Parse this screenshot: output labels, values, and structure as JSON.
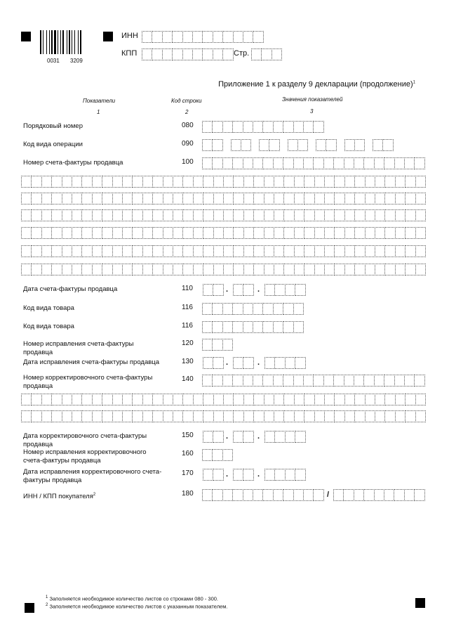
{
  "header": {
    "barcode_number_left": "0031",
    "barcode_number_right": "3209",
    "inn_label": "ИНН",
    "kpp_label": "КПП",
    "page_label": "Стр."
  },
  "title": "Приложение 1 к разделу 9 декларации (продолжение)",
  "title_footnote": "1",
  "columns": {
    "col1": "Показатели",
    "col1_num": "1",
    "col2": "Код строки",
    "col2_num": "2",
    "col3": "Значения показателей",
    "col3_num": "3"
  },
  "rows": [
    {
      "label": "Порядковый номер",
      "code": "080"
    },
    {
      "label": "Код вида операции",
      "code": "090"
    },
    {
      "label": "Номер счета-фактуры продавца",
      "code": "100"
    },
    {
      "label": "Дата счета-фактуры продавца",
      "code": "110"
    },
    {
      "label": "Код вида товара",
      "code": "116"
    },
    {
      "label": "Код вида товара",
      "code": "116"
    },
    {
      "label": "Номер исправления счета-фактуры продавца",
      "code": "120"
    },
    {
      "label": "Дата исправления счета-фактуры продавца",
      "code": "130"
    },
    {
      "label": "Номер корректировочного счета-фактуры продавца",
      "code": "140"
    },
    {
      "label": "Дата корректировочного счета-фактуры продавца",
      "code": "150"
    },
    {
      "label": "Номер исправления корректировочного счета-фактуры продавца",
      "code": "160"
    },
    {
      "label": "Дата исправления корректировочного счета-фактуры продавца",
      "code": "170"
    },
    {
      "label": "ИНН / КПП покупателя",
      "code": "180",
      "footnote": "2"
    }
  ],
  "date_separator": ".",
  "inn_kpp_separator": "/",
  "footnotes": [
    {
      "mark": "1",
      "text": "Заполняется необходимое количество листов со строками 080 - 300."
    },
    {
      "mark": "2",
      "text": "Заполняется необходимое количество листов с указанным показателем."
    }
  ]
}
